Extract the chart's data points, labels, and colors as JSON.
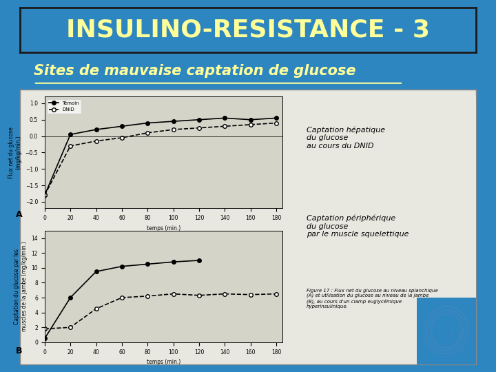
{
  "bg_color": "#2E86C1",
  "title_text": "INSULINO-RESISTANCE - 3",
  "title_color": "#FFFF99",
  "title_border": "#1a1a1a",
  "subtitle_text": "Sites de mauvaise captation de glucose",
  "subtitle_color": "#FFFF99",
  "graph_bg": "#d4d4c8",
  "graph_a_ylabel": "Flux net du glucose\n(mg/kg/min.)",
  "graph_a_xlabel": "temps (min.)",
  "graph_a_yticks": [
    -2.0,
    -1.5,
    -1.0,
    -0.5,
    0,
    0.5,
    1.0
  ],
  "graph_a_xticks": [
    0,
    20,
    40,
    60,
    80,
    100,
    120,
    140,
    160,
    180
  ],
  "graph_a_ylim": [
    -2.2,
    1.2
  ],
  "graph_a_xlim": [
    0,
    185
  ],
  "graph_a_temoin_x": [
    0,
    20,
    40,
    60,
    80,
    100,
    120,
    140,
    160,
    180
  ],
  "graph_a_temoin_y": [
    -1.8,
    0.05,
    0.2,
    0.3,
    0.4,
    0.45,
    0.5,
    0.55,
    0.5,
    0.55
  ],
  "graph_a_dnid_x": [
    0,
    20,
    40,
    60,
    80,
    100,
    120,
    140,
    160,
    180
  ],
  "graph_a_dnid_y": [
    -1.8,
    -0.3,
    -0.15,
    -0.05,
    0.1,
    0.2,
    0.25,
    0.3,
    0.35,
    0.4
  ],
  "graph_b_ylabel": "Captation du glucose par les\nmuscles de la jambe (mg/kg/min.)",
  "graph_b_xlabel": "temps (min.)",
  "graph_b_yticks": [
    0,
    2,
    4,
    6,
    8,
    10,
    12,
    14
  ],
  "graph_b_xticks": [
    0,
    20,
    40,
    60,
    80,
    100,
    120,
    140,
    160,
    180
  ],
  "graph_b_ylim": [
    0,
    15
  ],
  "graph_b_xlim": [
    0,
    185
  ],
  "graph_b_temoin_x": [
    0,
    20,
    40,
    60,
    80,
    100,
    120
  ],
  "graph_b_temoin_y": [
    0.5,
    6.0,
    9.5,
    10.2,
    10.5,
    10.8,
    11.0
  ],
  "graph_b_dnid_x": [
    0,
    20,
    40,
    60,
    80,
    100,
    120,
    140,
    160,
    180
  ],
  "graph_b_dnid_y": [
    1.8,
    2.0,
    4.5,
    6.0,
    6.2,
    6.5,
    6.3,
    6.5,
    6.4,
    6.5
  ],
  "label_temoin": "Témoin",
  "label_dnid": "DNID",
  "right_text1": "Captation hépatique\ndu glucose\nau cours du DNID",
  "right_text2": "Captation périphérique\ndu glucose\npar le muscle squelettique",
  "caption_text": "Figure 17 : Flux net du glucose au niveau splanchique\n(A) et utilisation du glucose au niveau de la jambe\n(B), au cours d'un clamp euglycémique\nhyperinsulinique."
}
